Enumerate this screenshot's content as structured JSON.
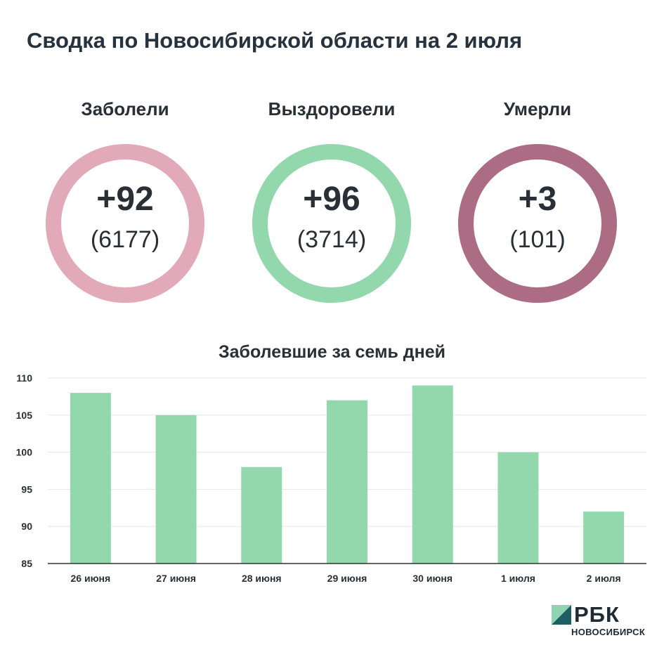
{
  "page_title": "Сводка по Новосибирской области на 2 июля",
  "stats": [
    {
      "label": "Заболели",
      "delta": "+92",
      "total": "(6177)",
      "color": "#e2aab9"
    },
    {
      "label": "Выздоровели",
      "delta": "+96",
      "total": "(3714)",
      "color": "#93d7ac"
    },
    {
      "label": "Умерли",
      "delta": "+3",
      "total": "(101)",
      "color": "#ac6c83"
    }
  ],
  "chart_title": "Заболевшие за семь дней",
  "chart_data": {
    "type": "bar",
    "title": "Заболевшие за семь дней",
    "categories": [
      "26 июня",
      "27 июня",
      "28 июня",
      "29 июня",
      "30 июня",
      "1 июля",
      "2 июля"
    ],
    "values": [
      108,
      105,
      98,
      107,
      109,
      100,
      92
    ],
    "ylim": [
      85,
      110
    ],
    "yticks": [
      85,
      90,
      95,
      100,
      105,
      110
    ],
    "grid": true,
    "bar_color": "#93d7ac"
  },
  "brand": {
    "name": "РБК",
    "sub": "НОВОСИБИРСК",
    "colors": {
      "mark_light": "#8fd3b0",
      "mark_dark": "#1f5e63"
    }
  }
}
